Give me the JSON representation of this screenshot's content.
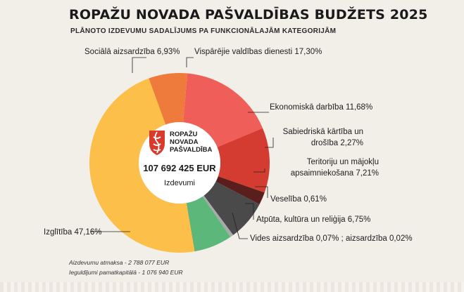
{
  "title": "ROPAŽU NOVADA PAŠVALDĪBAS BUDŽETS 2025",
  "subtitle": "PLĀNOTO IZDEVUMU SADALĪJUMS PA FUNKCIONĀLAJĀM KATEGORIJĀM",
  "center": {
    "logo_lines": [
      "ROPAŽU",
      "NOVADA",
      "PAŠVALDĪBA"
    ],
    "total": "107 692 425 EUR",
    "caption": "Izdevumi"
  },
  "labels": {
    "socialais": "Sociālā aizsardzība 6,93%",
    "visparejie": "Vispārējie valdības dienesti 17,30%",
    "ekonomiska": "Ekonomiskā darbība 11,68%",
    "sabiedriska": "Sabiedriskā kārtība un drošība 2,27%",
    "teritoriju": "Teritoriju un mājokļu apsaimniekošana 7,21%",
    "veseliba": "Veselība 0,61%",
    "atputa": "Atpūta, kultūra un reliģija 6,75%",
    "vides": "Vides aizsardzība 0,07% ; aizsardzība 0,02%",
    "izglitiba": "Izglītība 47,16%"
  },
  "footnotes": {
    "line1": "Aizdevumu atmaksa - 2 788 077 EUR",
    "line2": "Ieguldījumi pamatkapitālā - 1 076 940 EUR"
  },
  "chart_data": {
    "type": "pie",
    "donut": true,
    "title": "ROPAŽU NOVADA PAŠVALDĪBAS BUDŽETS 2025",
    "subtitle": "PLĀNOTO IZDEVUMU SADALĪJUMS PA FUNKCIONĀLAJĀM KATEGORIJĀM",
    "total": "107 692 425 EUR",
    "slices": [
      {
        "name": "Vispārējie valdības dienesti",
        "value": 17.3,
        "color": "#f05e5a"
      },
      {
        "name": "Ekonomiskā darbība",
        "value": 11.68,
        "color": "#d53c31"
      },
      {
        "name": "Sabiedriskā kārtība un drošība",
        "value": 2.27,
        "color": "#5a1f1c"
      },
      {
        "name": "Teritoriju un mājokļu apsaimniekošana",
        "value": 7.21,
        "color": "#4a4a4a"
      },
      {
        "name": "Veselība",
        "value": 0.61,
        "color": "#a9a9a9"
      },
      {
        "name": "Atpūta, kultūra un reliģija",
        "value": 6.75,
        "color": "#5bb77a"
      },
      {
        "name": "Vides aizsardzība",
        "value": 0.07,
        "color": "#3b8f58"
      },
      {
        "name": "Aizsardzība",
        "value": 0.02,
        "color": "#2a6b40"
      },
      {
        "name": "Izglītība",
        "value": 47.16,
        "color": "#fbbf4a"
      },
      {
        "name": "Sociālā aizsardzība",
        "value": 6.93,
        "color": "#ee7a3c"
      }
    ]
  }
}
